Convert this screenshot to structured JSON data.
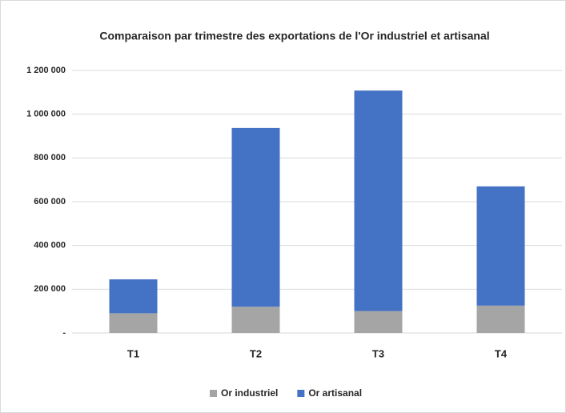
{
  "chart_data": {
    "type": "stacked_bar",
    "title": "Comparaison par trimestre des exportations de l'Or industriel et artisanal",
    "categories": [
      "T1",
      "T2",
      "T3",
      "T4"
    ],
    "series": [
      {
        "name": "Or industriel",
        "color": "#a5a5a5",
        "values": [
          90000,
          120000,
          100000,
          125000
        ]
      },
      {
        "name": "Or artisanal",
        "color": "#4472c4",
        "values": [
          155000,
          817000,
          1008000,
          545000
        ]
      }
    ],
    "ylim": [
      0,
      1200000
    ],
    "yticks": [
      {
        "value": 0,
        "label": "-"
      },
      {
        "value": 200000,
        "label": "200 000"
      },
      {
        "value": 400000,
        "label": "400 000"
      },
      {
        "value": 600000,
        "label": "600 000"
      },
      {
        "value": 800000,
        "label": "800 000"
      },
      {
        "value": 1000000,
        "label": "1 000 000"
      },
      {
        "value": 1200000,
        "label": "1 200 000"
      }
    ],
    "grid": true,
    "legend": "bottom"
  }
}
